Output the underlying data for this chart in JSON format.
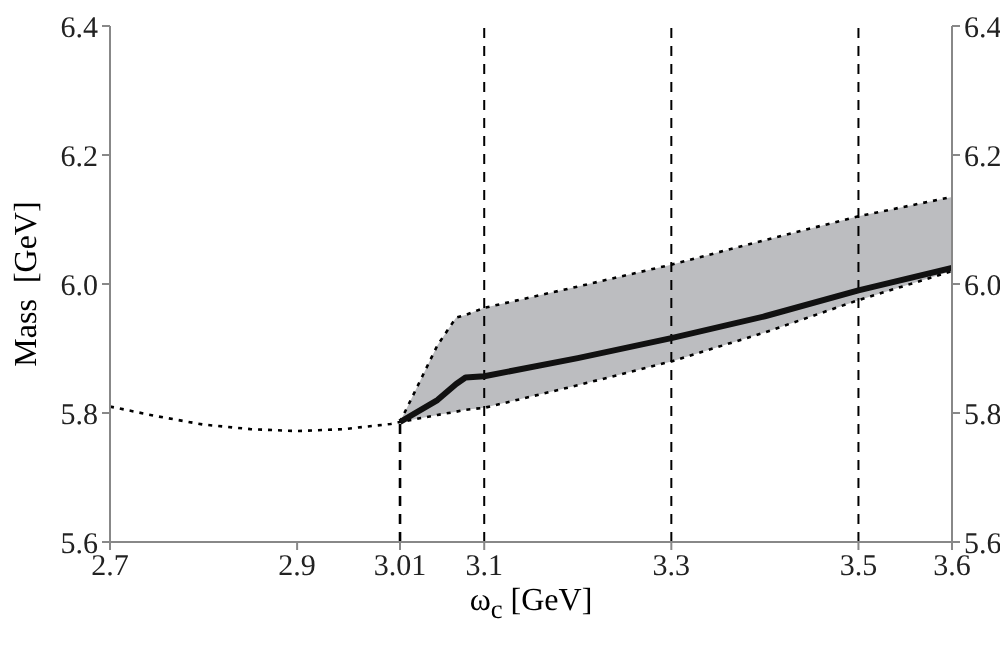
{
  "chart_data": {
    "type": "line",
    "xlabel": "ω$_{c}$ [GeV]",
    "ylabel": "Mass  [GeV]",
    "xlim": [
      2.7,
      3.6
    ],
    "xticks": [
      2.7,
      2.9,
      3.01,
      3.1,
      3.3,
      3.5,
      3.6
    ],
    "ylim": [
      5.6,
      6.4
    ],
    "yticks": [
      5.6,
      5.8,
      {
        "value": 6,
        "label": "6.0"
      },
      6.2,
      6.4
    ],
    "y2lim": [
      5.6,
      6.4
    ],
    "y2ticks": [
      5.6,
      5.8,
      {
        "value": 6,
        "label": "6.0"
      },
      6.2,
      6.4
    ],
    "grid": false,
    "legend": false,
    "marker": "none",
    "series": [
      {
        "color": "#000000",
        "line_style": "dotted",
        "x": [
          2.7,
          2.75,
          2.8,
          2.85,
          2.9,
          2.95,
          3.0,
          3.01,
          3.05,
          3.07,
          3.08,
          3.1,
          3.2,
          3.3,
          3.4,
          3.5,
          3.6
        ],
        "values": [
          5.81,
          5.795,
          5.782,
          5.775,
          5.772,
          5.775,
          5.783,
          5.786,
          5.797,
          5.802,
          5.805,
          5.808,
          5.843,
          5.88,
          5.925,
          5.975,
          6.02
        ]
      },
      {
        "color": "#000000",
        "line_style": "dotted",
        "x": [
          3.01,
          3.05,
          3.07,
          3.08,
          3.1,
          3.2,
          3.3,
          3.4,
          3.5,
          3.6
        ],
        "values": [
          5.786,
          5.905,
          5.948,
          5.952,
          5.963,
          5.996,
          6.03,
          6.068,
          6.105,
          6.135
        ]
      },
      {
        "color": "#111111",
        "line_style": "solid",
        "x": [
          3.01,
          3.05,
          3.07,
          3.08,
          3.1,
          3.2,
          3.3,
          3.4,
          3.5,
          3.6
        ],
        "values": [
          5.786,
          5.82,
          5.845,
          5.855,
          5.857,
          5.885,
          5.916,
          5.95,
          5.99,
          6.025
        ],
        "lower": [
          5.786,
          5.797,
          5.802,
          5.805,
          5.808,
          5.843,
          5.88,
          5.925,
          5.975,
          6.02
        ],
        "upper": [
          5.786,
          5.905,
          5.948,
          5.952,
          5.963,
          5.996,
          6.03,
          6.068,
          6.105,
          6.135
        ]
      },
      {
        "color": "#000000",
        "line_style": "dashed",
        "x": [
          3.01,
          3.01
        ],
        "values": [
          5.6,
          5.786
        ]
      }
    ],
    "ref_lines": [
      {
        "axis": "x",
        "value": 3.1,
        "line_style": "dashed",
        "color": "#000000"
      },
      {
        "axis": "x",
        "value": 3.3,
        "line_style": "dashed",
        "color": "#000000"
      },
      {
        "axis": "x",
        "value": 3.5,
        "line_style": "dashed",
        "color": "#000000"
      }
    ]
  }
}
